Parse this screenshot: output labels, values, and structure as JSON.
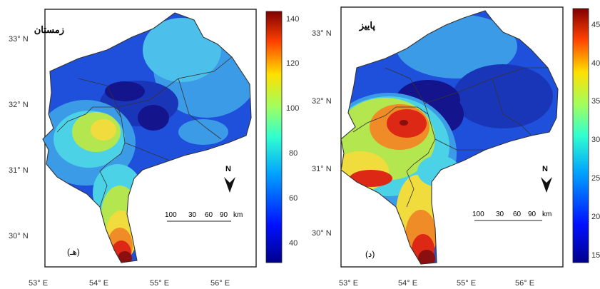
{
  "panels": [
    {
      "title": "زمستان",
      "label": "(هـ)",
      "colorbar": {
        "ticks": [
          "140",
          "120",
          "100",
          "80",
          "60",
          "40"
        ],
        "range": [
          30,
          140
        ]
      },
      "lat_labels": [
        "33° N",
        "32° N",
        "31° N",
        "30° N"
      ],
      "lon_labels": [
        "53° E",
        "54° E",
        "55° E",
        "56° E"
      ],
      "north": "N",
      "scale": {
        "labels": [
          "100",
          "30",
          "60",
          "90"
        ],
        "unit": "km"
      }
    },
    {
      "title": "پاییز",
      "label": "(د)",
      "colorbar": {
        "ticks": [
          "45",
          "40",
          "35",
          "30",
          "25",
          "20",
          "15"
        ],
        "range": [
          13,
          47
        ]
      },
      "lat_labels": [
        "33° N",
        "32° N",
        "31° N",
        "30° N"
      ],
      "lon_labels": [
        "53° E",
        "54° E",
        "55° E",
        "56° E"
      ],
      "north": "N",
      "scale": {
        "labels": [
          "100",
          "30",
          "60",
          "90"
        ],
        "unit": "km"
      }
    }
  ],
  "colors": {
    "dark_blue": "#14148c",
    "blue": "#1e50dc",
    "light_blue": "#3c9be6",
    "cyan": "#4cd2e6",
    "green_yellow": "#b4e650",
    "yellow": "#f0dc3c",
    "orange": "#f08c28",
    "red": "#dc2814",
    "dark_red": "#8c0f0f"
  }
}
